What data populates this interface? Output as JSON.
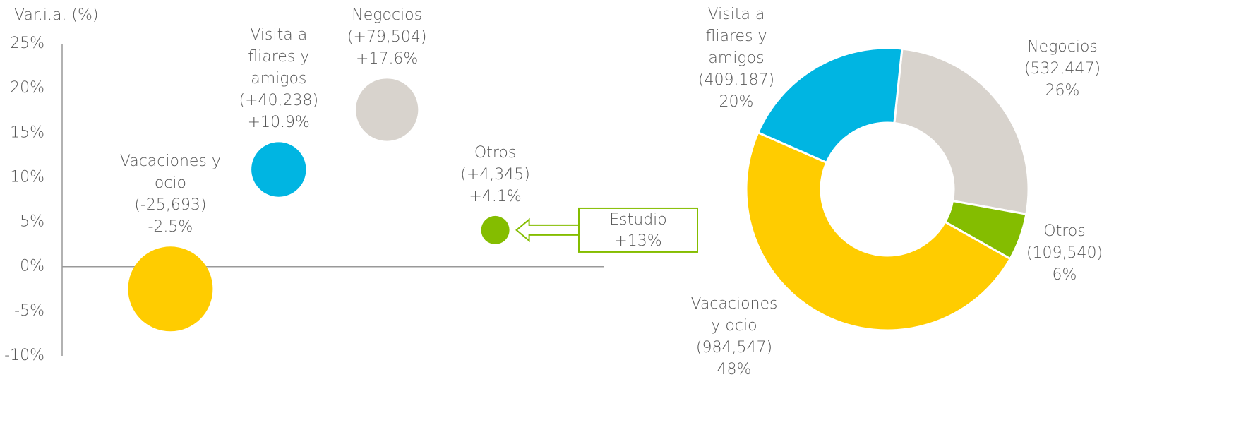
{
  "chart_data": [
    {
      "type": "bubble",
      "y_label": "Var.i.a. (%)",
      "categories": [
        "Vacaciones y ocio",
        "Visita a fliares y amigos",
        "Negocios",
        "Otros"
      ],
      "values": [
        -2.5,
        10.9,
        17.6,
        4.1
      ],
      "value_labels": [
        "-2.5%",
        "+10.9%",
        "+17.6%",
        "+4.1%"
      ],
      "change_labels": [
        "(-25,693)",
        "(+40,238)",
        "(+79,504)",
        "(+4,345)"
      ],
      "sizes": [
        984547,
        409187,
        532447,
        109540
      ],
      "colors": [
        "#FFCC00",
        "#00B5E2",
        "#D8D3CD",
        "#84BD00"
      ],
      "ylim": [
        -10,
        25
      ],
      "yticks": [
        {
          "value": -10,
          "label": "-10%"
        },
        {
          "value": -5,
          "label": "-5%"
        },
        {
          "value": 0,
          "label": "0%"
        },
        {
          "value": 5,
          "label": "5%"
        },
        {
          "value": 10,
          "label": "10%"
        },
        {
          "value": 15,
          "label": "15%"
        },
        {
          "value": 20,
          "label": "20%"
        },
        {
          "value": 25,
          "label": "25%"
        }
      ],
      "annotation": {
        "title": "Estudio",
        "text": "+13%",
        "color": "#84BD00"
      }
    },
    {
      "type": "donut",
      "categories": [
        "Negocios",
        "Otros",
        "Vacaciones y ocio",
        "Visita a fliares y amigos"
      ],
      "values": [
        532447,
        109540,
        984547,
        409187
      ],
      "value_labels": [
        "(532,447)",
        "(109,540)",
        "(984,547)",
        "(409,187)"
      ],
      "percent_labels": [
        "26%",
        "6%",
        "48%",
        "20%"
      ],
      "colors": [
        "#D8D3CD",
        "#84BD00",
        "#FFCC00",
        "#00B5E2"
      ]
    }
  ]
}
